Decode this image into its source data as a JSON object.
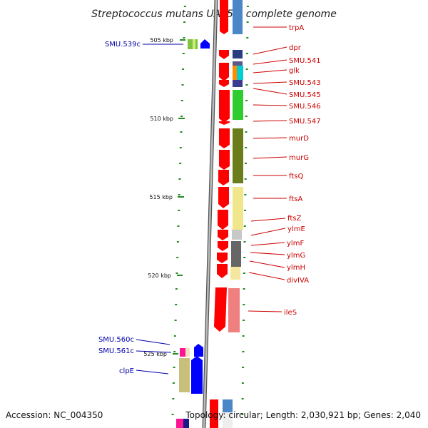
{
  "title": "Streptococcus mutans UA159, complete genome",
  "footer": {
    "accession": "Accession: NC_004350",
    "topology": "Topology: circular; Length: 2,030,921 bp; Genes: 2,040"
  },
  "kbp_labels": [
    "505 kbp",
    "510 kbp",
    "515 kbp",
    "520 kbp",
    "525 kbp"
  ],
  "right_genes": [
    "trpA",
    "dpr",
    "SMU.541",
    "glk",
    "SMU.543",
    "SMU.545",
    "SMU.546",
    "SMU.547",
    "murD",
    "murG",
    "ftsQ",
    "ftsA",
    "ftsZ",
    "ylmE",
    "ylmF",
    "ylmG",
    "ylmH",
    "divIVA",
    "ileS"
  ],
  "left_genes": [
    "SMU.539c",
    "SMU.560c",
    "SMU.561c",
    "clpE"
  ],
  "colors": {
    "forward_strand": "#ff0000",
    "reverse_strand": "#0000ff",
    "right_label": "#cc0000",
    "left_label": "#0000aa",
    "tick": "#228b22",
    "backbone": "#888888"
  }
}
